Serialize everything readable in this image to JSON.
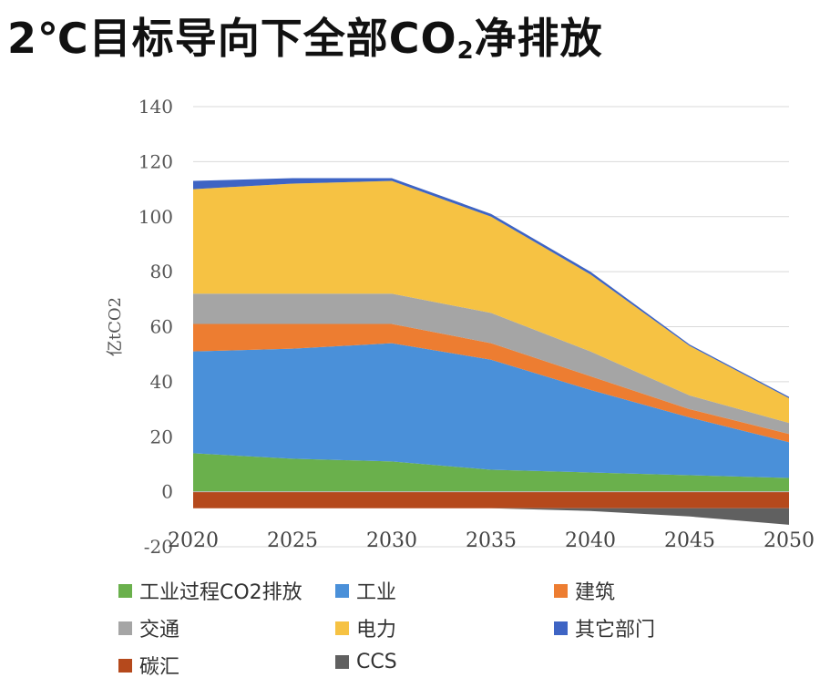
{
  "title": {
    "prefix": "2℃目标导向下全部CO",
    "sub": "2",
    "suffix": "净排放"
  },
  "chart_data": {
    "type": "area",
    "stacked": true,
    "x": [
      2020,
      2025,
      2030,
      2035,
      2040,
      2045,
      2050
    ],
    "ylabel": "亿tCO2",
    "ylim": [
      -20,
      140
    ],
    "yticks": [
      -20,
      0,
      20,
      40,
      60,
      80,
      100,
      120,
      140
    ],
    "grid": true,
    "legend_position": "bottom",
    "positive_series": [
      {
        "name": "工业过程CO2排放",
        "color": "#6ab04c",
        "values": [
          14,
          12,
          11,
          8,
          7,
          6,
          5
        ]
      },
      {
        "name": "工业",
        "color": "#4a90d9",
        "values": [
          37,
          40,
          43,
          40,
          30,
          21,
          13
        ]
      },
      {
        "name": "建筑",
        "color": "#ed7d31",
        "values": [
          10,
          9,
          7,
          6,
          5,
          3,
          3
        ]
      },
      {
        "name": "交通",
        "color": "#a5a5a5",
        "values": [
          11,
          11,
          11,
          11,
          9,
          5,
          4
        ]
      },
      {
        "name": "电力",
        "color": "#f6c243",
        "values": [
          38,
          40,
          41,
          35,
          28,
          18,
          9
        ]
      },
      {
        "name": "其它部门",
        "color": "#3e64c4",
        "values": [
          3,
          2,
          1,
          1,
          1,
          0.5,
          0.5
        ]
      }
    ],
    "negative_series": [
      {
        "name": "碳汇",
        "color": "#b5491c",
        "values": [
          -6,
          -6,
          -6,
          -6,
          -6,
          -6,
          -6
        ]
      },
      {
        "name": "CCS",
        "color": "#606060",
        "values": [
          0,
          0,
          0,
          0,
          -1,
          -3,
          -6
        ]
      }
    ]
  },
  "legend_order": [
    "工业过程CO2排放",
    "工业",
    "建筑",
    "交通",
    "电力",
    "其它部门",
    "碳汇",
    "CCS"
  ]
}
